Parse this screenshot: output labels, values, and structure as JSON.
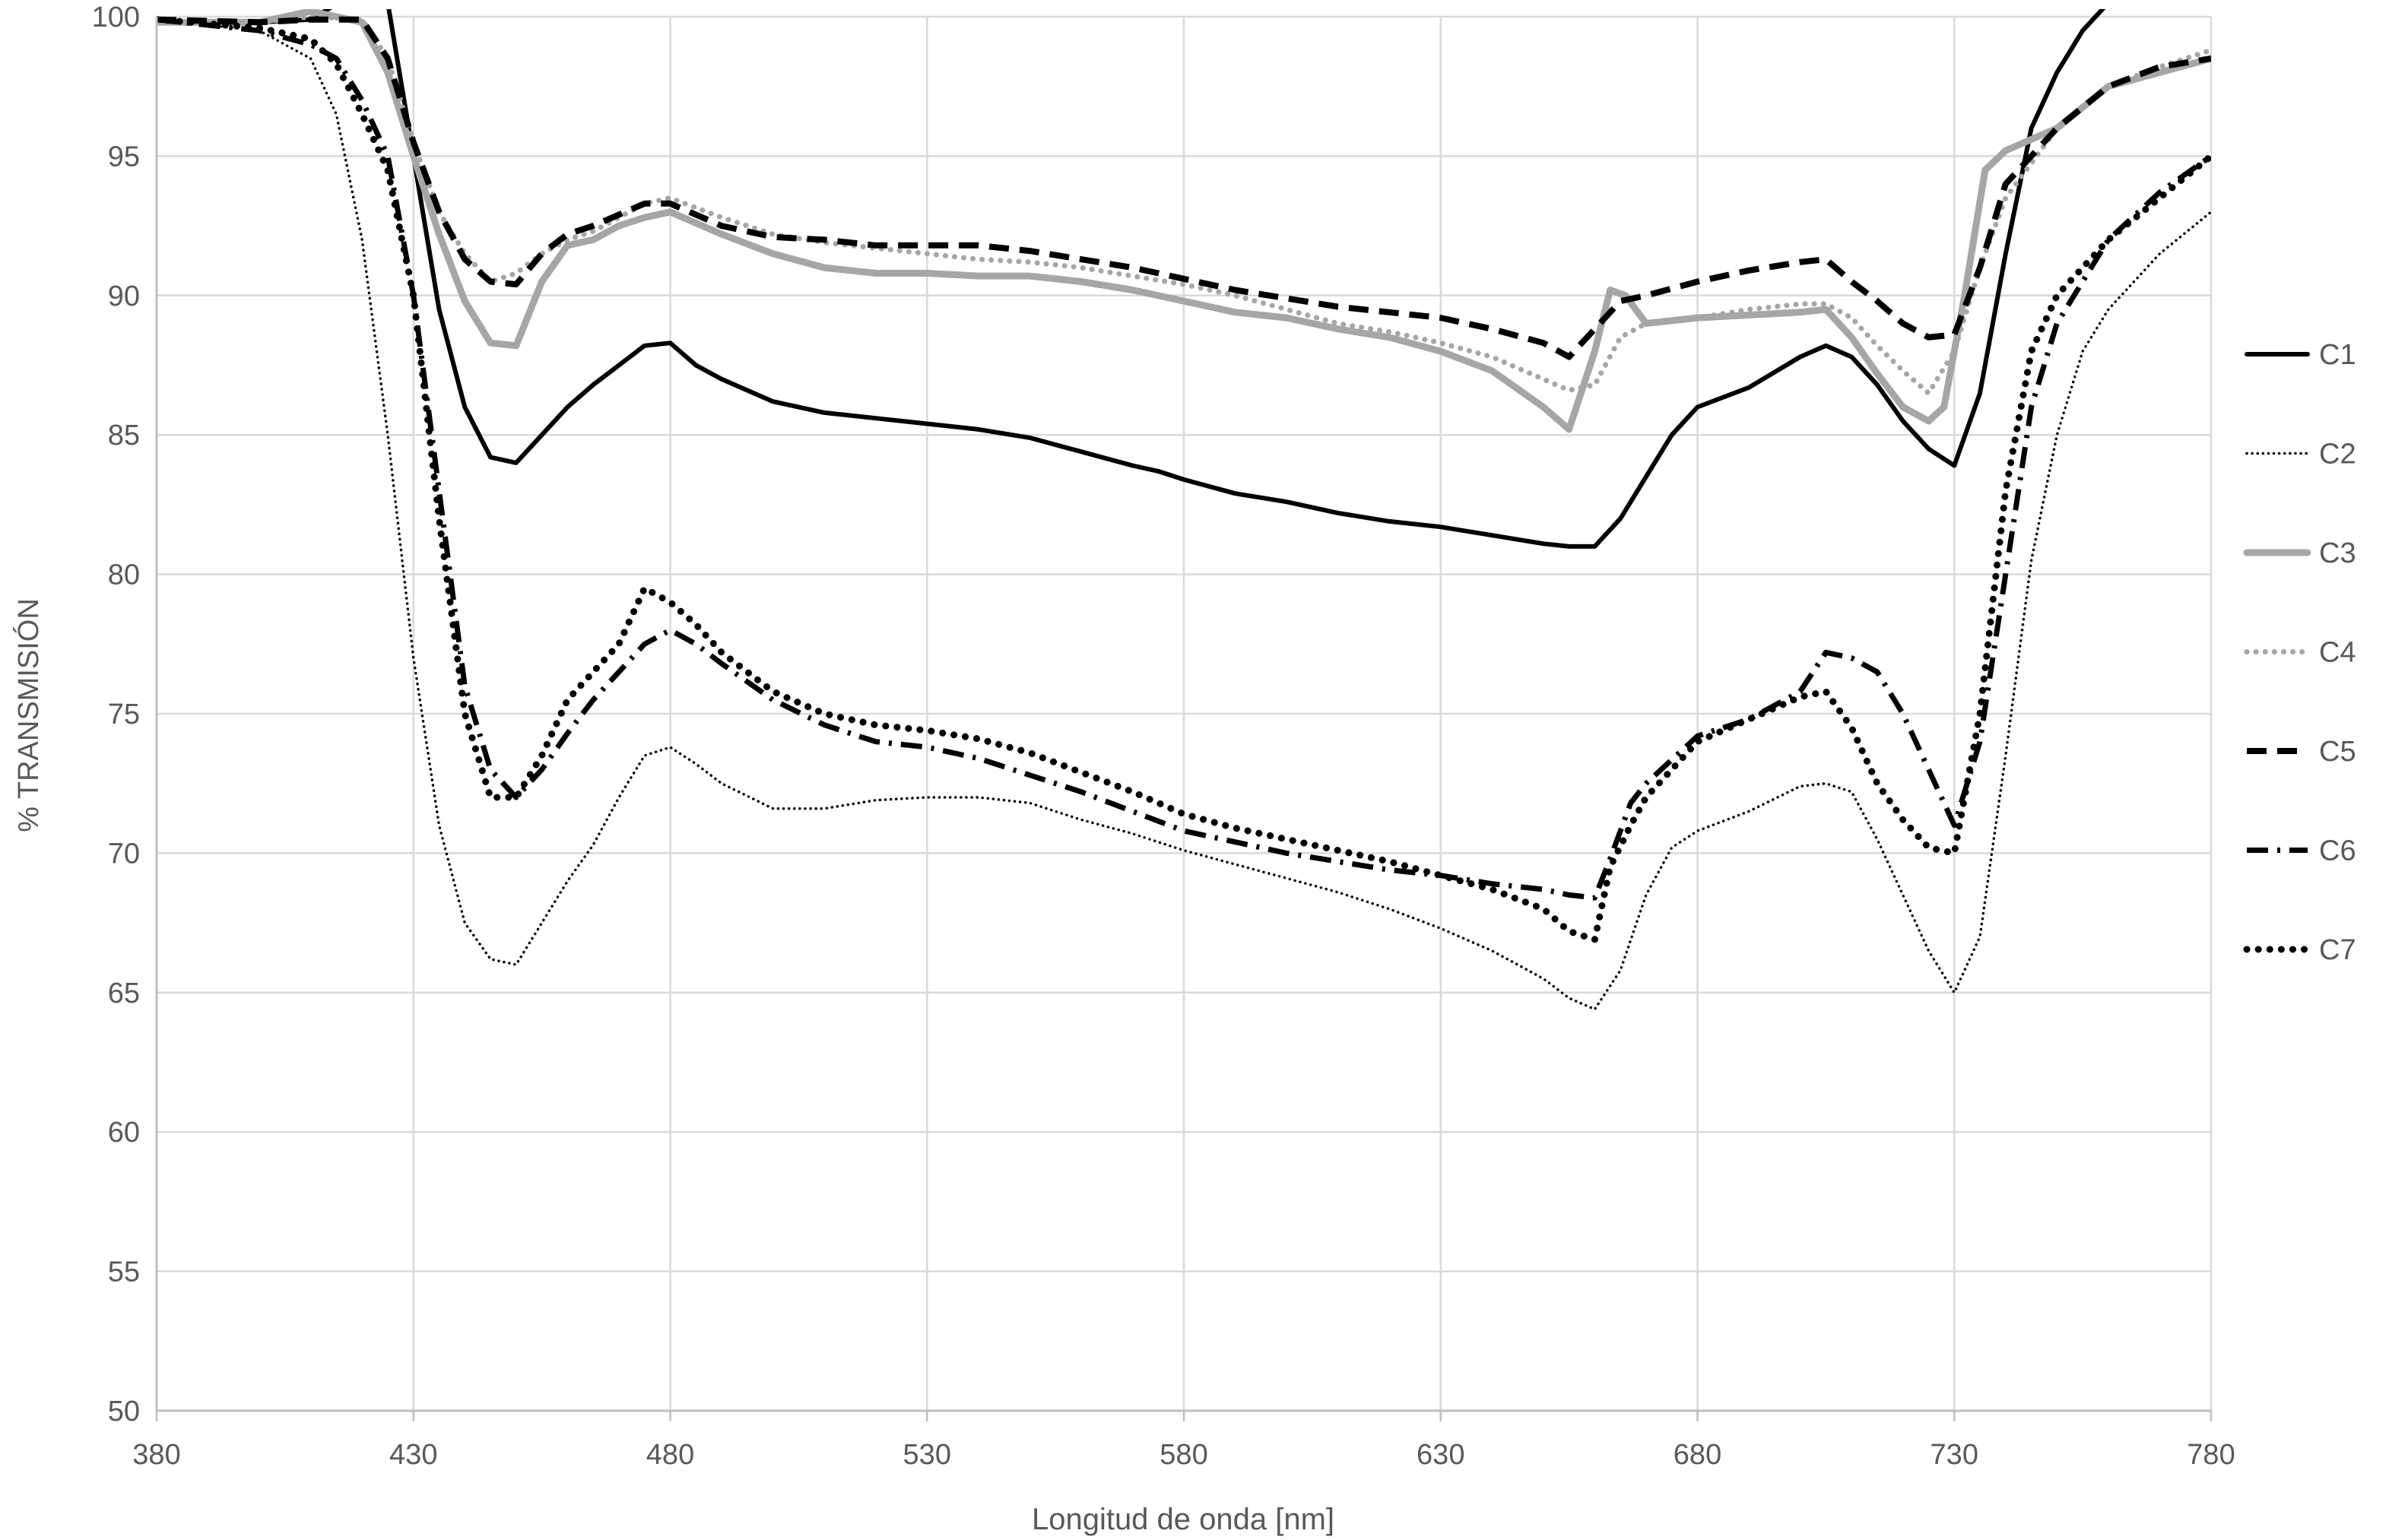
{
  "chart_data": {
    "type": "line",
    "title": "",
    "xlabel": "Longitud de onda [nm]",
    "ylabel": "% TRANSMISIÓN",
    "xlim": [
      380,
      780
    ],
    "ylim": [
      50,
      100
    ],
    "x_ticks": [
      380,
      430,
      480,
      530,
      580,
      630,
      680,
      730,
      780
    ],
    "y_ticks": [
      50,
      55,
      60,
      65,
      70,
      75,
      80,
      85,
      90,
      95,
      100
    ],
    "grid": true,
    "legend_position": "right",
    "colors": {
      "black": "#000000",
      "gray": "#a6a6a6",
      "grid": "#d9d9d9",
      "axis": "#bfbfbf",
      "text": "#595959"
    },
    "series": [
      {
        "name": "C1",
        "color": "#000000",
        "style": "solid",
        "x": [
          380,
          400,
          410,
          420,
          425,
          430,
          435,
          440,
          445,
          450,
          455,
          460,
          465,
          470,
          475,
          480,
          485,
          490,
          500,
          510,
          520,
          530,
          540,
          550,
          560,
          570,
          575,
          580,
          590,
          600,
          610,
          620,
          630,
          640,
          650,
          655,
          660,
          665,
          670,
          675,
          680,
          690,
          700,
          705,
          710,
          715,
          720,
          725,
          730,
          735,
          740,
          745,
          750,
          755,
          760
        ],
        "y": [
          99.8,
          99.8,
          99.9,
          101,
          100.5,
          95,
          89.5,
          86,
          84.2,
          84.0,
          85.0,
          86.0,
          86.8,
          87.5,
          88.2,
          88.3,
          87.5,
          87.0,
          86.2,
          85.8,
          85.6,
          85.4,
          85.2,
          84.9,
          84.4,
          83.9,
          83.7,
          83.4,
          82.9,
          82.6,
          82.2,
          81.9,
          81.7,
          81.4,
          81.1,
          81.0,
          81.0,
          82.0,
          83.5,
          85.0,
          86.0,
          86.7,
          87.8,
          88.2,
          87.8,
          86.8,
          85.5,
          84.5,
          83.9,
          86.5,
          91.5,
          96.0,
          98.0,
          99.5,
          100.5
        ]
      },
      {
        "name": "C2",
        "color": "#000000",
        "style": "fine-dot",
        "x": [
          380,
          400,
          410,
          415,
          420,
          425,
          430,
          435,
          440,
          445,
          450,
          455,
          460,
          465,
          470,
          475,
          480,
          485,
          490,
          500,
          510,
          520,
          530,
          540,
          550,
          560,
          570,
          580,
          590,
          600,
          610,
          620,
          630,
          640,
          650,
          655,
          660,
          665,
          670,
          675,
          680,
          690,
          700,
          705,
          710,
          715,
          720,
          725,
          730,
          735,
          740,
          745,
          750,
          755,
          760,
          770,
          780
        ],
        "y": [
          99.9,
          99.5,
          98.5,
          96.5,
          92,
          85,
          77,
          71,
          67.5,
          66.2,
          66.0,
          67.5,
          69.0,
          70.3,
          72.0,
          73.5,
          73.8,
          73.2,
          72.5,
          71.6,
          71.6,
          71.9,
          72.0,
          72.0,
          71.8,
          71.2,
          70.7,
          70.1,
          69.6,
          69.1,
          68.6,
          68.0,
          67.3,
          66.5,
          65.5,
          64.8,
          64.4,
          65.8,
          68.5,
          70.2,
          70.8,
          71.5,
          72.4,
          72.5,
          72.2,
          70.5,
          68.5,
          66.5,
          65.0,
          67.0,
          73.5,
          80.5,
          85.0,
          88.0,
          89.5,
          91.5,
          93.0
        ]
      },
      {
        "name": "C3",
        "color": "#a6a6a6",
        "style": "thick-solid",
        "x": [
          380,
          400,
          410,
          420,
          425,
          430,
          435,
          440,
          445,
          450,
          455,
          460,
          465,
          470,
          475,
          480,
          490,
          500,
          510,
          520,
          530,
          540,
          550,
          560,
          570,
          580,
          590,
          600,
          610,
          620,
          630,
          640,
          650,
          655,
          660,
          663,
          666,
          670,
          680,
          690,
          700,
          705,
          710,
          715,
          720,
          725,
          728,
          732,
          736,
          740,
          750,
          760,
          770,
          780
        ],
        "y": [
          99.8,
          99.8,
          100.2,
          99.8,
          98,
          95,
          92.2,
          89.8,
          88.3,
          88.2,
          90.5,
          91.8,
          92.0,
          92.5,
          92.8,
          93.0,
          92.2,
          91.5,
          91.0,
          90.8,
          90.8,
          90.7,
          90.7,
          90.5,
          90.2,
          89.8,
          89.4,
          89.2,
          88.8,
          88.5,
          88.0,
          87.3,
          86.0,
          85.2,
          88.0,
          90.2,
          90.0,
          89.0,
          89.2,
          89.3,
          89.4,
          89.5,
          88.5,
          87.2,
          86.0,
          85.5,
          86.0,
          90.0,
          94.5,
          95.2,
          96.0,
          97.5,
          98.0,
          98.5
        ]
      },
      {
        "name": "C4",
        "color": "#a6a6a6",
        "style": "dot",
        "x": [
          380,
          400,
          410,
          420,
          425,
          430,
          435,
          440,
          445,
          450,
          455,
          460,
          465,
          470,
          475,
          480,
          490,
          500,
          510,
          520,
          530,
          540,
          550,
          560,
          570,
          580,
          590,
          600,
          610,
          620,
          630,
          640,
          650,
          655,
          660,
          665,
          670,
          680,
          690,
          700,
          705,
          710,
          715,
          720,
          725,
          730,
          735,
          740,
          750,
          760,
          770,
          780
        ],
        "y": [
          99.8,
          99.8,
          100.0,
          99.9,
          98.5,
          95.5,
          93,
          91.5,
          90.5,
          90.8,
          91.5,
          92.0,
          92.3,
          92.8,
          93.3,
          93.5,
          92.8,
          92.2,
          91.9,
          91.7,
          91.5,
          91.3,
          91.2,
          91.0,
          90.7,
          90.4,
          90.0,
          89.5,
          89.0,
          88.7,
          88.3,
          87.8,
          87.0,
          86.6,
          86.8,
          88.5,
          89.0,
          89.2,
          89.5,
          89.7,
          89.7,
          89.2,
          88.2,
          87.3,
          86.5,
          88.0,
          91.0,
          93.5,
          96.0,
          97.5,
          98.2,
          98.8
        ]
      },
      {
        "name": "C5",
        "color": "#000000",
        "style": "dash",
        "x": [
          380,
          400,
          410,
          420,
          425,
          430,
          435,
          440,
          445,
          450,
          455,
          460,
          465,
          470,
          475,
          480,
          490,
          500,
          510,
          520,
          530,
          540,
          550,
          560,
          570,
          580,
          590,
          600,
          610,
          620,
          630,
          640,
          650,
          655,
          660,
          665,
          670,
          680,
          690,
          700,
          705,
          710,
          715,
          720,
          725,
          730,
          735,
          740,
          750,
          760,
          770,
          780
        ],
        "y": [
          99.9,
          99.8,
          99.9,
          99.9,
          98.5,
          95.5,
          93,
          91.3,
          90.5,
          90.4,
          91.5,
          92.2,
          92.5,
          92.9,
          93.3,
          93.3,
          92.5,
          92.1,
          92.0,
          91.8,
          91.8,
          91.8,
          91.6,
          91.3,
          91.0,
          90.6,
          90.2,
          89.9,
          89.6,
          89.4,
          89.2,
          88.8,
          88.3,
          87.8,
          88.8,
          89.8,
          90.0,
          90.5,
          90.9,
          91.2,
          91.3,
          90.5,
          89.8,
          89.0,
          88.5,
          88.6,
          91.0,
          94.0,
          96.0,
          97.5,
          98.2,
          98.5
        ]
      },
      {
        "name": "C6",
        "color": "#000000",
        "style": "dash-dot",
        "x": [
          380,
          400,
          410,
          415,
          420,
          425,
          430,
          435,
          440,
          445,
          450,
          455,
          460,
          465,
          470,
          475,
          480,
          485,
          490,
          500,
          510,
          520,
          530,
          540,
          550,
          560,
          570,
          580,
          590,
          600,
          610,
          620,
          630,
          640,
          650,
          655,
          660,
          663,
          667,
          670,
          680,
          690,
          700,
          705,
          710,
          715,
          720,
          725,
          730,
          735,
          740,
          745,
          750,
          760,
          770,
          780
        ],
        "y": [
          99.9,
          99.5,
          99.0,
          98.5,
          97.0,
          95.0,
          90.0,
          83.0,
          76.0,
          73.0,
          72.0,
          73.0,
          74.3,
          75.5,
          76.5,
          77.5,
          78.0,
          77.5,
          76.8,
          75.5,
          74.6,
          74.0,
          73.8,
          73.4,
          72.8,
          72.2,
          71.5,
          70.8,
          70.4,
          70.0,
          69.7,
          69.4,
          69.2,
          68.9,
          68.7,
          68.5,
          68.4,
          69.8,
          71.8,
          72.5,
          74.2,
          74.8,
          75.8,
          77.2,
          77.0,
          76.5,
          75.0,
          73.0,
          71.0,
          74.0,
          80.0,
          86.0,
          89.0,
          92.0,
          93.7,
          95.0
        ]
      },
      {
        "name": "C7",
        "color": "#000000",
        "style": "round-dot",
        "x": [
          380,
          400,
          410,
          415,
          420,
          425,
          430,
          435,
          440,
          445,
          450,
          455,
          460,
          465,
          470,
          475,
          480,
          485,
          490,
          500,
          510,
          520,
          530,
          540,
          550,
          560,
          570,
          580,
          590,
          600,
          610,
          620,
          630,
          640,
          650,
          655,
          660,
          663,
          667,
          670,
          680,
          690,
          700,
          705,
          710,
          715,
          720,
          725,
          730,
          735,
          740,
          745,
          750,
          760,
          770,
          780
        ],
        "y": [
          99.9,
          99.6,
          99.2,
          98.3,
          96.5,
          94.5,
          90.0,
          82.0,
          75.0,
          72.0,
          72.0,
          73.5,
          75.5,
          76.5,
          77.5,
          79.5,
          79.0,
          78.2,
          77.2,
          75.8,
          75.0,
          74.6,
          74.4,
          74.1,
          73.6,
          72.9,
          72.2,
          71.4,
          70.9,
          70.5,
          70.1,
          69.7,
          69.2,
          68.7,
          68.0,
          67.2,
          66.9,
          69.5,
          71.0,
          72.0,
          74.0,
          74.8,
          75.6,
          75.8,
          74.5,
          72.5,
          71.2,
          70.2,
          70.0,
          75.0,
          83.0,
          88.0,
          90.0,
          92.0,
          93.5,
          95.0
        ]
      }
    ]
  }
}
